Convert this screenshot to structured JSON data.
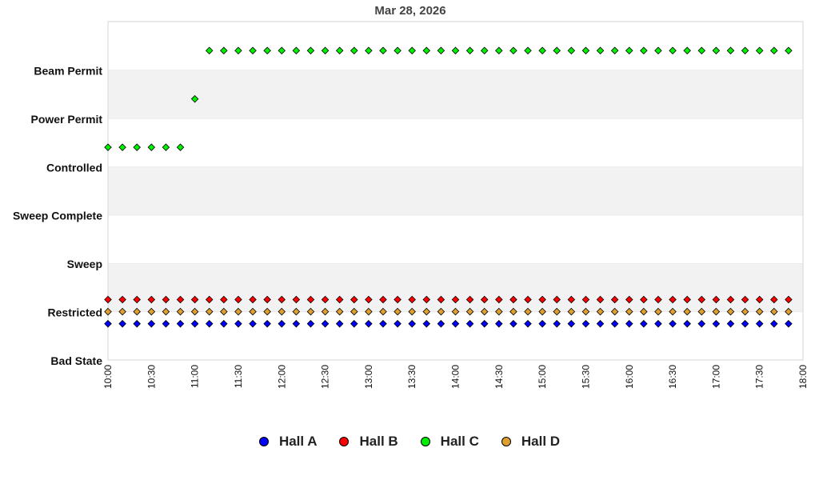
{
  "chart_data": {
    "type": "scatter",
    "title": "Mar 28, 2026",
    "xlabel": "",
    "ylabel": "",
    "y_categories": [
      "Bad State",
      "Restricted",
      "Sweep",
      "Sweep Complete",
      "Controlled",
      "Power Permit",
      "Beam Permit"
    ],
    "x_ticks": [
      "10:00",
      "10:30",
      "11:00",
      "11:30",
      "12:00",
      "12:30",
      "13:00",
      "13:30",
      "14:00",
      "14:30",
      "15:00",
      "15:30",
      "16:00",
      "16:30",
      "17:00",
      "17:30",
      "18:00"
    ],
    "xlim": [
      "10:00",
      "18:00"
    ],
    "legend_position": "bottom",
    "grid": "alternating horizontal bands",
    "series": [
      {
        "name": "Hall A",
        "color": "#0000ff",
        "state_level": 0.75,
        "x_start": "10:00",
        "x_end": "17:50",
        "interval_minutes": 10
      },
      {
        "name": "Hall B",
        "color": "#ff0000",
        "state_level": 1.25,
        "x_start": "10:00",
        "x_end": "17:50",
        "interval_minutes": 10
      },
      {
        "name": "Hall C",
        "color": "#00ee00",
        "segments": [
          {
            "state_level": 4.4,
            "x_start": "10:00",
            "x_end": "10:50",
            "interval_minutes": 10
          },
          {
            "state_level": 5.4,
            "x_start": "11:00",
            "x_end": "11:00",
            "interval_minutes": 10
          },
          {
            "state_level": 6.4,
            "x_start": "11:10",
            "x_end": "17:50",
            "interval_minutes": 10
          }
        ]
      },
      {
        "name": "Hall D",
        "color": "#e0a030",
        "state_level": 1.0,
        "x_start": "10:00",
        "x_end": "17:50",
        "interval_minutes": 10
      }
    ]
  }
}
